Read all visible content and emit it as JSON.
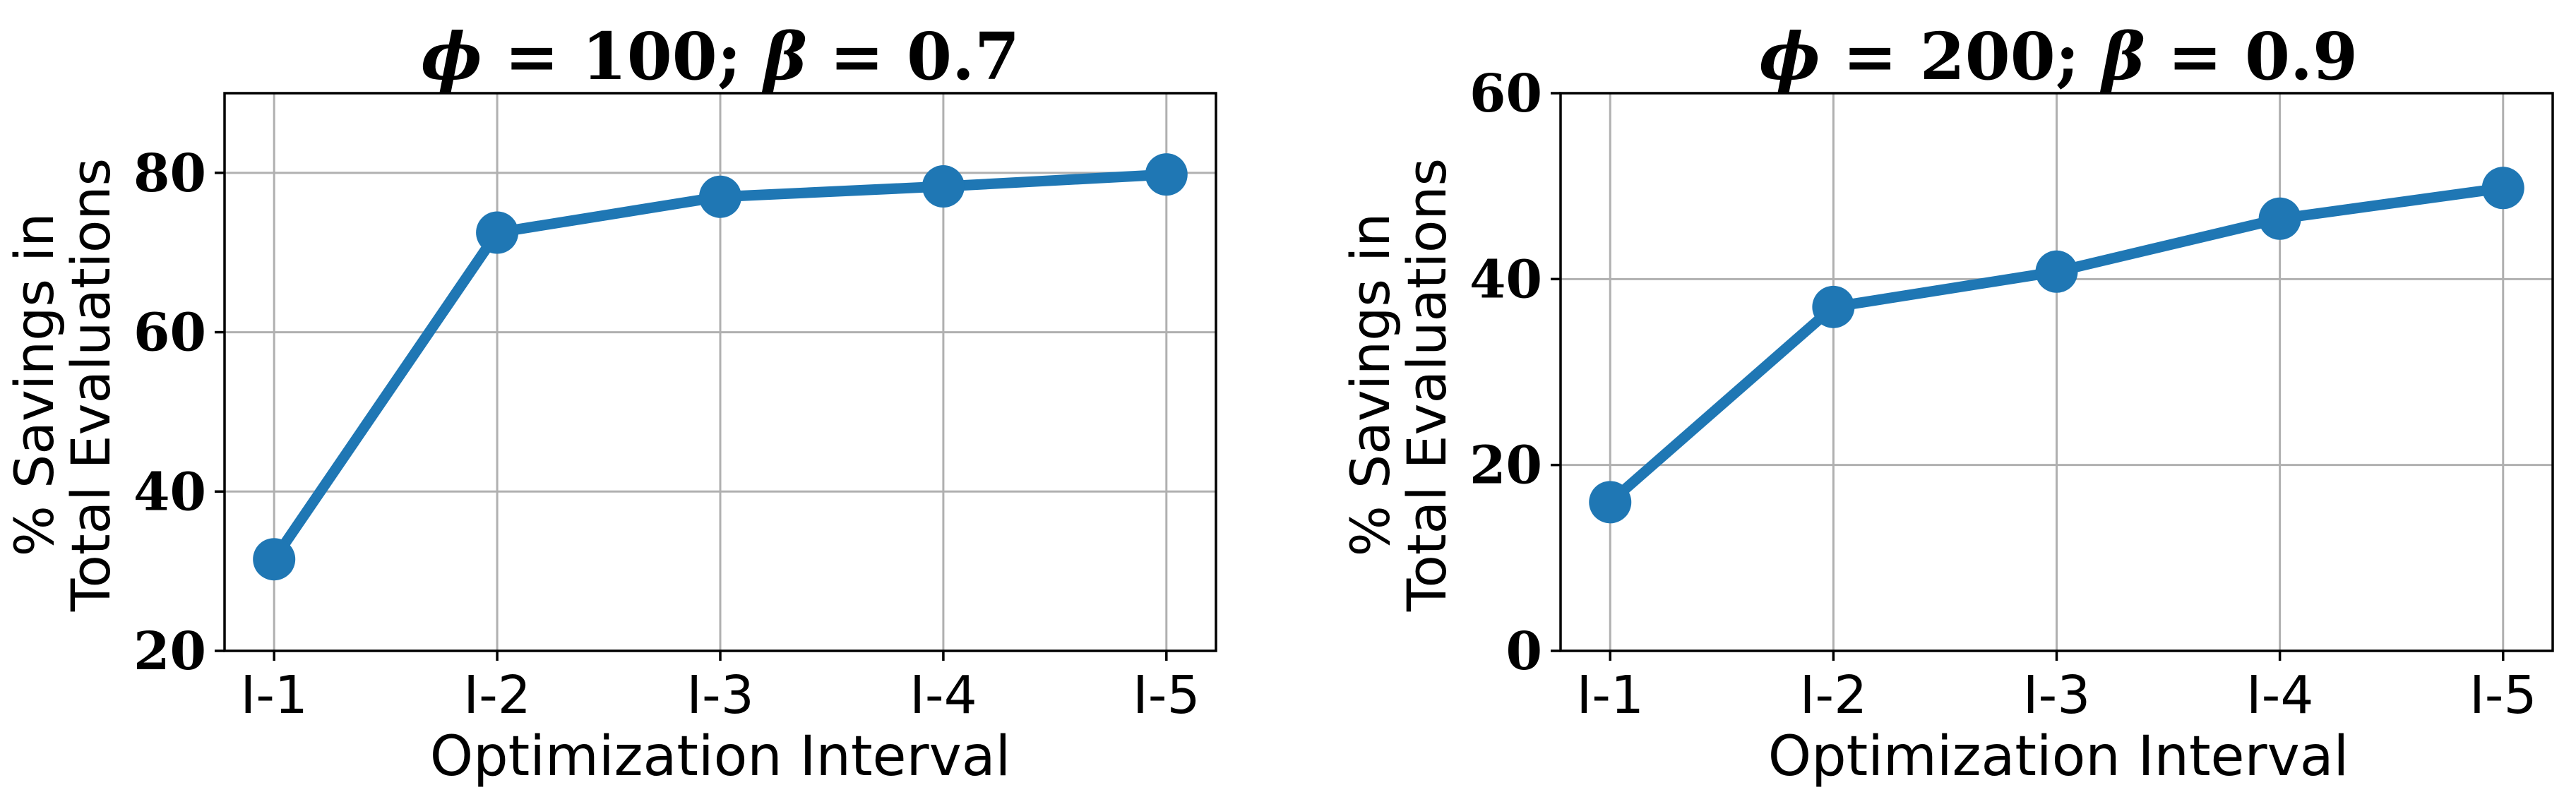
{
  "chart_data": [
    {
      "type": "line",
      "title": "ϕ = 100; β = 0.7",
      "title_parts": {
        "sym1": "ϕ",
        "rest1": " = 100; ",
        "sym2": "β",
        "rest2": " = 0.7"
      },
      "xlabel": "Optimization Interval",
      "ylabel": [
        "% Savings in",
        "Total Evaluations"
      ],
      "categories": [
        "I-1",
        "I-2",
        "I-3",
        "I-4",
        "I-5"
      ],
      "values": [
        31.5,
        72.5,
        77.0,
        78.3,
        79.8
      ],
      "ylim": [
        20,
        90
      ],
      "yticks": [
        20,
        40,
        60,
        80
      ],
      "grid": true,
      "color": "#1f77b4"
    },
    {
      "type": "line",
      "title": "ϕ = 200; β = 0.9",
      "title_parts": {
        "sym1": "ϕ",
        "rest1": " = 200; ",
        "sym2": "β",
        "rest2": " = 0.9"
      },
      "xlabel": "Optimization Interval",
      "ylabel": [
        "% Savings in",
        "Total Evaluations"
      ],
      "categories": [
        "I-1",
        "I-2",
        "I-3",
        "I-4",
        "I-5"
      ],
      "values": [
        16.0,
        37.0,
        40.8,
        46.5,
        49.8
      ],
      "ylim": [
        0,
        60
      ],
      "yticks": [
        0,
        20,
        40,
        60
      ],
      "grid": true,
      "color": "#1f77b4"
    }
  ]
}
